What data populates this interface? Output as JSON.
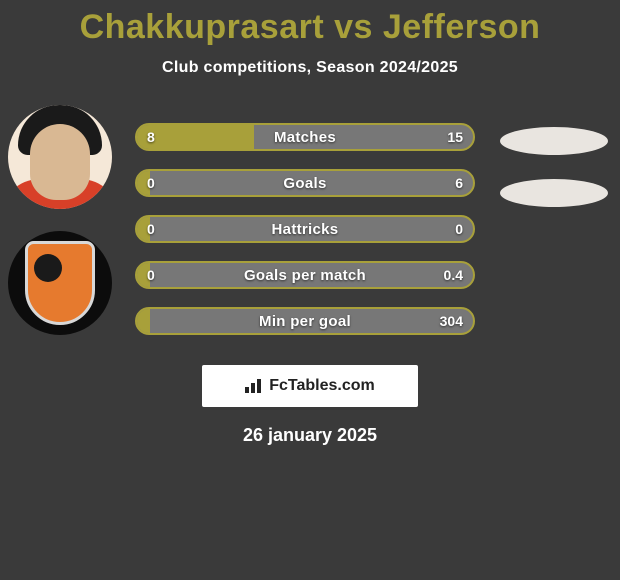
{
  "title": "Chakkuprasart vs Jefferson",
  "subtitle": "Club competitions, Season 2024/2025",
  "date": "26 january 2025",
  "logo_text": "FcTables.com",
  "colors": {
    "background": "#3a3a3a",
    "accent": "#a8a03a",
    "bar_bg": "#777777",
    "text": "#ffffff",
    "logo_bg": "#ffffff"
  },
  "avatars": {
    "player": {
      "bg": "#f5e8d8",
      "jersey": "#d84028"
    },
    "club": {
      "bg": "#0c0c0c",
      "crest": "#e67a2e"
    }
  },
  "ellipse_color": "#e9e5e0",
  "stats": [
    {
      "label": "Matches",
      "left_val": "8",
      "right_val": "15",
      "left_num": 8,
      "right_num": 15,
      "fill_pct": 34.8
    },
    {
      "label": "Goals",
      "left_val": "0",
      "right_val": "6",
      "left_num": 0,
      "right_num": 6,
      "fill_pct": 4
    },
    {
      "label": "Hattricks",
      "left_val": "0",
      "right_val": "0",
      "left_num": 0,
      "right_num": 0,
      "fill_pct": 4
    },
    {
      "label": "Goals per match",
      "left_val": "0",
      "right_val": "0.4",
      "left_num": 0,
      "right_num": 0.4,
      "fill_pct": 4
    },
    {
      "label": "Min per goal",
      "left_val": "",
      "right_val": "304",
      "left_num": 0,
      "right_num": 304,
      "fill_pct": 4
    }
  ]
}
